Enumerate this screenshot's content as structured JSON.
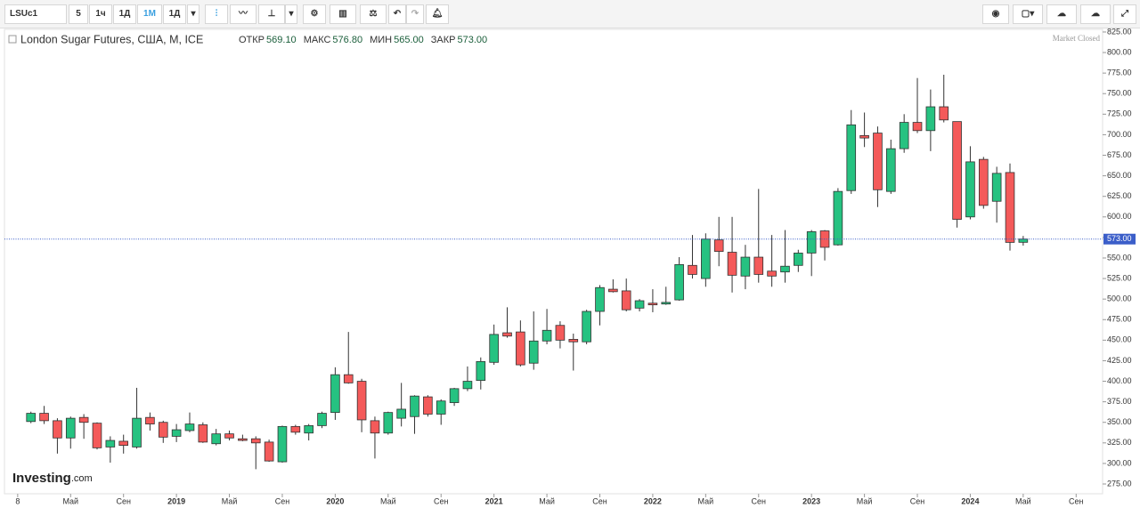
{
  "toolbar": {
    "symbol": "LSUc1",
    "intervals": [
      "5",
      "1ч",
      "1Д",
      "1М",
      "1Д"
    ]
  },
  "chart_data": {
    "type": "candlestick",
    "title": "London Sugar Futures, США, M, ICE",
    "ohlc_labels": [
      {
        "name": "ОТКР",
        "value": "569.10"
      },
      {
        "name": "МАКС",
        "value": "576.80"
      },
      {
        "name": "МИН",
        "value": "565.00"
      },
      {
        "name": "ЗАКР",
        "value": "573.00"
      }
    ],
    "status": "Market Closed",
    "logo": "Investing",
    "logo_suffix": ".com",
    "last_price": {
      "value": 573,
      "label": "573.00"
    },
    "up_color": "#26c281",
    "down_color": "#f45a5a",
    "price_line_color": "#3b5ec9",
    "grid": false,
    "x": [
      "2018-02",
      "2018-03",
      "2018-04",
      "2018-05",
      "2018-06",
      "2018-07",
      "2018-08",
      "2018-09",
      "2018-10",
      "2018-11",
      "2018-12",
      "2019-01",
      "2019-02",
      "2019-03",
      "2019-04",
      "2019-05",
      "2019-06",
      "2019-07",
      "2019-08",
      "2019-09",
      "2019-10",
      "2019-11",
      "2019-12",
      "2020-01",
      "2020-02",
      "2020-03",
      "2020-04",
      "2020-05",
      "2020-06",
      "2020-07",
      "2020-08",
      "2020-09",
      "2020-10",
      "2020-11",
      "2020-12",
      "2021-01",
      "2021-02",
      "2021-03",
      "2021-04",
      "2021-05",
      "2021-06",
      "2021-07",
      "2021-08",
      "2021-09",
      "2021-10",
      "2021-11",
      "2021-12",
      "2022-01",
      "2022-02",
      "2022-03",
      "2022-04",
      "2022-05",
      "2022-06",
      "2022-07",
      "2022-08",
      "2022-09",
      "2022-10",
      "2022-11",
      "2022-12",
      "2023-01",
      "2023-02",
      "2023-03",
      "2023-04",
      "2023-05",
      "2023-06",
      "2023-07",
      "2023-08",
      "2023-09",
      "2023-10",
      "2023-11",
      "2023-12",
      "2024-01",
      "2024-02",
      "2024-03",
      "2024-04",
      "2024-05"
    ],
    "open": [
      351,
      361,
      352,
      331,
      356,
      349,
      320,
      327,
      320,
      356,
      350,
      333,
      340,
      347,
      324,
      336,
      330,
      330,
      326,
      302,
      345,
      337,
      346,
      362,
      408,
      400,
      352,
      337,
      355,
      357,
      381,
      360,
      374,
      391,
      401,
      423,
      459,
      460,
      422,
      449,
      468,
      451,
      448,
      485,
      512,
      510,
      489,
      495,
      494,
      499,
      541,
      525,
      572,
      557,
      528,
      551,
      534,
      533,
      541,
      556,
      583,
      566,
      632,
      699,
      702,
      631,
      683,
      715,
      705,
      734,
      716,
      600,
      670,
      619,
      654,
      569.1
    ],
    "high": [
      363,
      370,
      355,
      357,
      360,
      350,
      333,
      335,
      392,
      362,
      352,
      348,
      362,
      350,
      342,
      340,
      335,
      333,
      329,
      346,
      347,
      348,
      363,
      417,
      460,
      403,
      357,
      363,
      398,
      383,
      383,
      378,
      392,
      418,
      429,
      469,
      490,
      474,
      485,
      488,
      473,
      458,
      487,
      517,
      524,
      525,
      500,
      512,
      515,
      551,
      578,
      580,
      600,
      600,
      566,
      634,
      578,
      584,
      560,
      584,
      584,
      635,
      730,
      727,
      710,
      694,
      725,
      769,
      755,
      773,
      716,
      686,
      673,
      661,
      665,
      576.8
    ],
    "low": [
      349,
      348,
      312,
      318,
      330,
      317,
      301,
      312,
      318,
      340,
      325,
      326,
      338,
      325,
      322,
      328,
      327,
      293,
      302,
      301,
      335,
      328,
      343,
      353,
      397,
      338,
      306,
      335,
      345,
      336,
      357,
      347,
      370,
      388,
      390,
      420,
      453,
      418,
      414,
      445,
      440,
      413,
      445,
      468,
      508,
      485,
      485,
      484,
      493,
      498,
      525,
      515,
      540,
      508,
      512,
      520,
      515,
      520,
      533,
      528,
      547,
      565,
      628,
      685,
      612,
      628,
      678,
      702,
      680,
      715,
      587,
      597,
      610,
      593,
      559,
      565
    ],
    "close": [
      361,
      352,
      331,
      355,
      350,
      319,
      328,
      322,
      355,
      348,
      332,
      341,
      348,
      326,
      336,
      331,
      328,
      325,
      303,
      345,
      338,
      346,
      361,
      408,
      398,
      353,
      337,
      362,
      366,
      382,
      360,
      376,
      391,
      400,
      424,
      457,
      455,
      420,
      449,
      462,
      450,
      448,
      485,
      514,
      509,
      487,
      498,
      493,
      496,
      542,
      530,
      573,
      558,
      529,
      551,
      530,
      528,
      540,
      556,
      582,
      563,
      631,
      712,
      696,
      633,
      683,
      715,
      705,
      734,
      718,
      597,
      667,
      614,
      653,
      569,
      573
    ],
    "xlim": [
      "2017-12",
      "2024-11"
    ],
    "xticks": [
      {
        "value": "2018-01",
        "label": "8"
      },
      {
        "value": "2018-05",
        "label": "Май"
      },
      {
        "value": "2018-09",
        "label": "Сен"
      },
      {
        "value": "2019-01",
        "label": "2019"
      },
      {
        "value": "2019-05",
        "label": "Май"
      },
      {
        "value": "2019-09",
        "label": "Сен"
      },
      {
        "value": "2020-01",
        "label": "2020"
      },
      {
        "value": "2020-05",
        "label": "Май"
      },
      {
        "value": "2020-09",
        "label": "Сен"
      },
      {
        "value": "2021-01",
        "label": "2021"
      },
      {
        "value": "2021-05",
        "label": "Май"
      },
      {
        "value": "2021-09",
        "label": "Сен"
      },
      {
        "value": "2022-01",
        "label": "2022"
      },
      {
        "value": "2022-05",
        "label": "Май"
      },
      {
        "value": "2022-09",
        "label": "Сен"
      },
      {
        "value": "2023-01",
        "label": "2023"
      },
      {
        "value": "2023-05",
        "label": "Май"
      },
      {
        "value": "2023-09",
        "label": "Сен"
      },
      {
        "value": "2024-01",
        "label": "2024"
      },
      {
        "value": "2024-05",
        "label": "Май"
      },
      {
        "value": "2024-09",
        "label": "Сен"
      }
    ],
    "ylim": [
      263.1,
      828.2
    ],
    "yticks": [
      {
        "value": 275,
        "label": "275.00"
      },
      {
        "value": 300,
        "label": "300.00"
      },
      {
        "value": 325,
        "label": "325.00"
      },
      {
        "value": 350,
        "label": "350.00"
      },
      {
        "value": 375,
        "label": "375.00"
      },
      {
        "value": 400,
        "label": "400.00"
      },
      {
        "value": 425,
        "label": "425.00"
      },
      {
        "value": 450,
        "label": "450.00"
      },
      {
        "value": 475,
        "label": "475.00"
      },
      {
        "value": 500,
        "label": "500.00"
      },
      {
        "value": 525,
        "label": "525.00"
      },
      {
        "value": 550,
        "label": "550.00"
      },
      {
        "value": 575,
        "label": "575.00"
      },
      {
        "value": 600,
        "label": "600.00"
      },
      {
        "value": 625,
        "label": "625.00"
      },
      {
        "value": 650,
        "label": "650.00"
      },
      {
        "value": 675,
        "label": "675.00"
      },
      {
        "value": 700,
        "label": "700.00"
      },
      {
        "value": 725,
        "label": "725.00"
      },
      {
        "value": 750,
        "label": "750.00"
      },
      {
        "value": 775,
        "label": "775.00"
      },
      {
        "value": 800,
        "label": "800.00"
      },
      {
        "value": 825,
        "label": "825.00"
      }
    ]
  }
}
